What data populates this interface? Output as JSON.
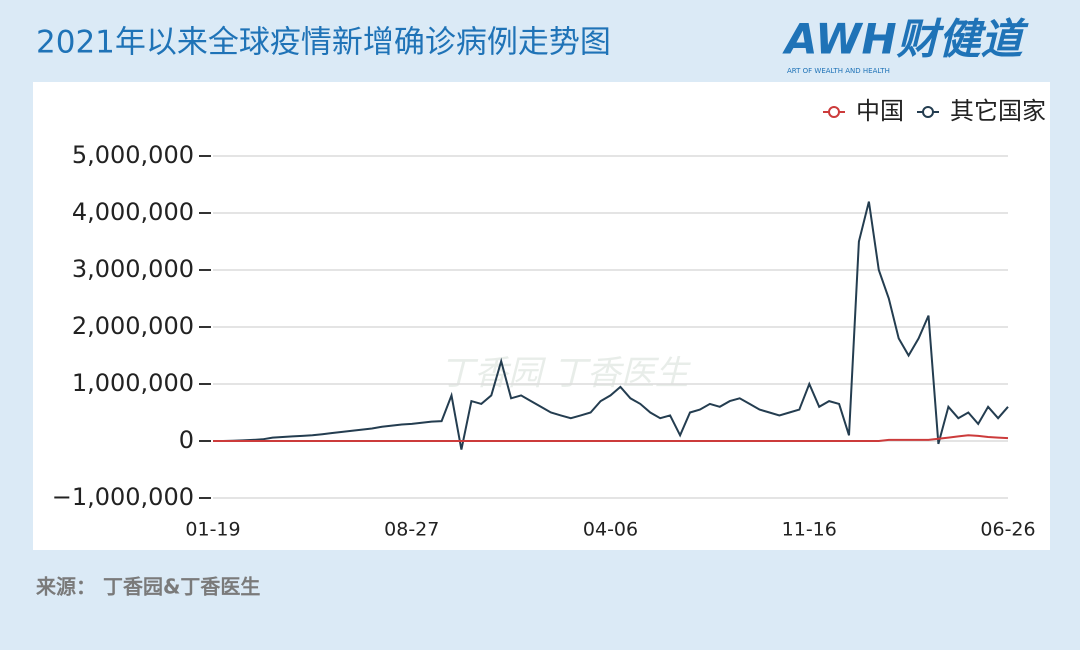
{
  "header": {
    "brand": "AWH财健道",
    "brand_sub": "ART OF WEALTH AND HEALTH"
  },
  "chart_data": {
    "type": "line",
    "title": "2021年以来全球疫情新增确诊病例走势图",
    "source": "来源：  丁香园&丁香医生",
    "watermark": "丁香园  丁香医生",
    "categories": [
      "01-19",
      null,
      null,
      null,
      null,
      null,
      null,
      null,
      null,
      null,
      null,
      null,
      null,
      null,
      null,
      null,
      null,
      null,
      null,
      null,
      "08-27",
      null,
      null,
      null,
      null,
      null,
      null,
      null,
      null,
      null,
      null,
      null,
      null,
      null,
      null,
      null,
      null,
      null,
      null,
      null,
      "04-06",
      null,
      null,
      null,
      null,
      null,
      null,
      null,
      null,
      null,
      null,
      null,
      null,
      null,
      null,
      null,
      null,
      null,
      null,
      null,
      "11-16",
      null,
      null,
      null,
      null,
      null,
      null,
      null,
      null,
      null,
      null,
      null,
      null,
      null,
      null,
      null,
      null,
      null,
      null,
      null,
      "06-26"
    ],
    "series": [
      {
        "name": "中国",
        "color": "#cc3b3b",
        "values": [
          0,
          0,
          0,
          0,
          0,
          0,
          0,
          0,
          0,
          0,
          0,
          0,
          0,
          0,
          0,
          0,
          0,
          0,
          0,
          0,
          0,
          0,
          0,
          0,
          0,
          0,
          0,
          0,
          0,
          0,
          0,
          0,
          0,
          0,
          0,
          0,
          0,
          0,
          0,
          0,
          0,
          0,
          0,
          0,
          0,
          0,
          0,
          0,
          0,
          0,
          0,
          0,
          0,
          0,
          0,
          0,
          0,
          0,
          0,
          0,
          0,
          0,
          0,
          0,
          0,
          0,
          0,
          0,
          20000,
          20000,
          20000,
          20000,
          20000,
          40000,
          60000,
          80000,
          100000,
          90000,
          70000,
          60000,
          50000
        ]
      },
      {
        "name": "其它国家",
        "color": "#243d50",
        "values": [
          0,
          0,
          5000,
          10000,
          20000,
          30000,
          60000,
          70000,
          80000,
          90000,
          100000,
          120000,
          140000,
          160000,
          180000,
          200000,
          220000,
          250000,
          270000,
          290000,
          300000,
          320000,
          340000,
          350000,
          800000,
          -150000,
          700000,
          650000,
          800000,
          1400000,
          750000,
          800000,
          700000,
          600000,
          500000,
          450000,
          400000,
          450000,
          500000,
          700000,
          800000,
          950000,
          750000,
          650000,
          500000,
          400000,
          450000,
          100000,
          500000,
          550000,
          650000,
          600000,
          700000,
          750000,
          650000,
          550000,
          500000,
          450000,
          500000,
          550000,
          1000000,
          600000,
          700000,
          650000,
          100000,
          3500000,
          4200000,
          3000000,
          2500000,
          1800000,
          1500000,
          1800000,
          2200000,
          -50000,
          600000,
          400000,
          500000,
          300000,
          600000,
          400000,
          600000
        ]
      }
    ],
    "ylim": [
      -1000000,
      5000000
    ],
    "yticks": [
      {
        "value": -1000000,
        "label": "−1,000,000"
      },
      0,
      {
        "value": 1000000,
        "label": "1,000,000"
      },
      {
        "value": 2000000,
        "label": "2,000,000"
      },
      {
        "value": 3000000,
        "label": "3,000,000"
      },
      {
        "value": 4000000,
        "label": "4,000,000"
      },
      {
        "value": 5000000,
        "label": "5,000,000"
      }
    ],
    "grid": true,
    "legend": "top-right"
  }
}
